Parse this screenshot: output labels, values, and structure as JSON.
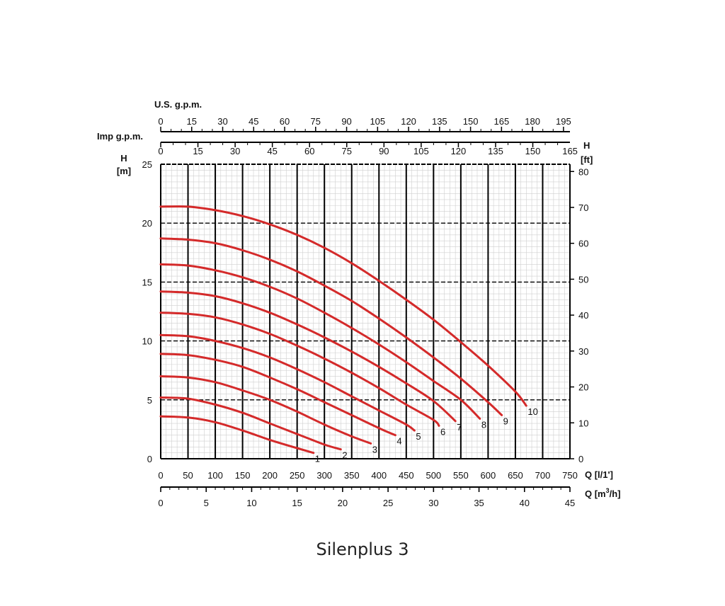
{
  "chart_data": {
    "type": "line",
    "x_unit_label": "Q [l/1']",
    "x_ticks": [
      0,
      50,
      100,
      150,
      200,
      250,
      300,
      350,
      400,
      450,
      500,
      550,
      600,
      650,
      700,
      750
    ],
    "xlim": [
      0,
      750
    ],
    "x2_label": "Q [m3/h]",
    "x2_ticks": [
      0,
      5,
      10,
      15,
      20,
      25,
      30,
      35,
      40,
      45
    ],
    "top1_label": "U.S. g.p.m.",
    "top1_ticks": [
      0,
      15,
      30,
      45,
      60,
      75,
      90,
      105,
      120,
      135,
      150,
      165,
      180,
      195
    ],
    "top2_label": "Imp g.p.m.",
    "top2_ticks": [
      0,
      15,
      30,
      45,
      60,
      75,
      90,
      105,
      120,
      135,
      150,
      165
    ],
    "ylabel_left": "H [m]",
    "ylim": [
      0,
      25
    ],
    "y_ticks": [
      0,
      5,
      10,
      15,
      20,
      25
    ],
    "ylabel_right": "H [ft]",
    "y2_ticks": [
      0,
      10,
      20,
      30,
      40,
      50,
      60,
      70,
      80
    ],
    "curve_color": "#d42a2a",
    "series": [
      {
        "label": "1",
        "points": [
          [
            0,
            3.6
          ],
          [
            50,
            3.5
          ],
          [
            100,
            3.1
          ],
          [
            150,
            2.4
          ],
          [
            200,
            1.6
          ],
          [
            250,
            0.9
          ],
          [
            280,
            0.5
          ]
        ]
      },
      {
        "label": "2",
        "points": [
          [
            0,
            5.2
          ],
          [
            50,
            5.1
          ],
          [
            100,
            4.6
          ],
          [
            150,
            3.9
          ],
          [
            200,
            3.0
          ],
          [
            250,
            2.1
          ],
          [
            300,
            1.2
          ],
          [
            330,
            0.8
          ]
        ]
      },
      {
        "label": "3",
        "points": [
          [
            0,
            7.0
          ],
          [
            50,
            6.9
          ],
          [
            100,
            6.5
          ],
          [
            150,
            5.8
          ],
          [
            200,
            5.0
          ],
          [
            250,
            4.0
          ],
          [
            300,
            2.9
          ],
          [
            350,
            1.9
          ],
          [
            385,
            1.3
          ]
        ]
      },
      {
        "label": "4",
        "points": [
          [
            0,
            8.9
          ],
          [
            50,
            8.8
          ],
          [
            100,
            8.4
          ],
          [
            150,
            7.8
          ],
          [
            200,
            6.9
          ],
          [
            250,
            5.9
          ],
          [
            300,
            4.8
          ],
          [
            350,
            3.7
          ],
          [
            400,
            2.6
          ],
          [
            430,
            2.0
          ]
        ]
      },
      {
        "label": "5",
        "points": [
          [
            0,
            10.5
          ],
          [
            50,
            10.4
          ],
          [
            100,
            10.0
          ],
          [
            150,
            9.4
          ],
          [
            200,
            8.6
          ],
          [
            250,
            7.6
          ],
          [
            300,
            6.5
          ],
          [
            350,
            5.3
          ],
          [
            400,
            4.1
          ],
          [
            450,
            2.9
          ],
          [
            465,
            2.4
          ]
        ]
      },
      {
        "label": "6",
        "points": [
          [
            0,
            12.4
          ],
          [
            50,
            12.3
          ],
          [
            100,
            12.0
          ],
          [
            150,
            11.4
          ],
          [
            200,
            10.6
          ],
          [
            250,
            9.6
          ],
          [
            300,
            8.5
          ],
          [
            350,
            7.3
          ],
          [
            400,
            6.0
          ],
          [
            450,
            4.6
          ],
          [
            500,
            3.3
          ],
          [
            510,
            2.8
          ]
        ]
      },
      {
        "label": "7",
        "points": [
          [
            0,
            14.2
          ],
          [
            50,
            14.1
          ],
          [
            100,
            13.8
          ],
          [
            150,
            13.2
          ],
          [
            200,
            12.4
          ],
          [
            250,
            11.4
          ],
          [
            300,
            10.3
          ],
          [
            350,
            9.1
          ],
          [
            400,
            7.8
          ],
          [
            450,
            6.4
          ],
          [
            500,
            4.9
          ],
          [
            540,
            3.2
          ]
        ]
      },
      {
        "label": "8",
        "points": [
          [
            0,
            16.5
          ],
          [
            50,
            16.4
          ],
          [
            100,
            16.0
          ],
          [
            150,
            15.4
          ],
          [
            200,
            14.6
          ],
          [
            250,
            13.6
          ],
          [
            300,
            12.4
          ],
          [
            350,
            11.1
          ],
          [
            400,
            9.7
          ],
          [
            450,
            8.2
          ],
          [
            500,
            6.6
          ],
          [
            550,
            5.0
          ],
          [
            585,
            3.4
          ]
        ]
      },
      {
        "label": "9",
        "points": [
          [
            0,
            18.7
          ],
          [
            50,
            18.6
          ],
          [
            100,
            18.3
          ],
          [
            150,
            17.7
          ],
          [
            200,
            16.9
          ],
          [
            250,
            15.9
          ],
          [
            300,
            14.7
          ],
          [
            350,
            13.4
          ],
          [
            400,
            11.9
          ],
          [
            450,
            10.3
          ],
          [
            500,
            8.6
          ],
          [
            550,
            6.8
          ],
          [
            600,
            4.8
          ],
          [
            625,
            3.7
          ]
        ]
      },
      {
        "label": "10",
        "points": [
          [
            0,
            21.4
          ],
          [
            50,
            21.4
          ],
          [
            100,
            21.1
          ],
          [
            150,
            20.6
          ],
          [
            200,
            19.9
          ],
          [
            250,
            19.0
          ],
          [
            300,
            17.9
          ],
          [
            350,
            16.6
          ],
          [
            400,
            15.1
          ],
          [
            450,
            13.5
          ],
          [
            500,
            11.8
          ],
          [
            550,
            9.9
          ],
          [
            600,
            7.9
          ],
          [
            650,
            5.7
          ],
          [
            670,
            4.5
          ]
        ]
      }
    ]
  },
  "caption": "Silenplus 3"
}
